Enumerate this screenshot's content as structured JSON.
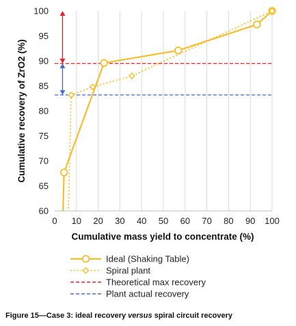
{
  "chart_data": {
    "type": "line",
    "xlabel": "Cumulative mass yield to concentrate (%)",
    "ylabel": "Cumulative recovery of ZrO2 (%)",
    "xlim": [
      0,
      100
    ],
    "ylim": [
      60,
      100
    ],
    "xticks": [
      0,
      10,
      20,
      30,
      40,
      50,
      60,
      70,
      80,
      90,
      100
    ],
    "yticks": [
      60,
      65,
      70,
      75,
      80,
      85,
      90,
      95,
      100
    ],
    "grid": "vertical",
    "legend_position": "bottom",
    "series": [
      {
        "name": "Ideal (Shaking Table)",
        "color": "#f5be2d",
        "style": "solid",
        "marker": "circle",
        "x": [
          3.5,
          4.3,
          22.7,
          56.8,
          93.0,
          100.0
        ],
        "y": [
          55.0,
          67.7,
          89.6,
          92.1,
          97.3,
          100.0
        ],
        "marked": [
          false,
          true,
          true,
          true,
          true,
          true
        ]
      },
      {
        "name": "Spiral plant",
        "color": "#f5be2d",
        "style": "dotted",
        "marker": "diamond",
        "x": [
          6.0,
          7.6,
          17.5,
          35.5,
          100.0
        ],
        "y": [
          55.0,
          83.2,
          84.8,
          87.0,
          100.0
        ],
        "marked": [
          false,
          true,
          true,
          true,
          true
        ]
      },
      {
        "name": "Theoretical max recovery",
        "color": "#e8222a",
        "style": "dashed",
        "y_constant": 89.5
      },
      {
        "name": "Plant actual recovery",
        "color": "#4a6fc0",
        "style": "dashed",
        "y_constant": 83.2
      }
    ],
    "annotations": [
      {
        "type": "double-arrow",
        "x": 3.6,
        "y_from": 89.5,
        "y_to": 100,
        "color": "#e8222a"
      },
      {
        "type": "double-arrow",
        "x": 3.6,
        "y_from": 83.2,
        "y_to": 89.5,
        "color": "#4a6fc0"
      }
    ]
  },
  "caption": {
    "prefix": "Figure 15—Case 3: ideal recovery ",
    "emphasis": "versus",
    "suffix": " spiral circuit recovery"
  }
}
